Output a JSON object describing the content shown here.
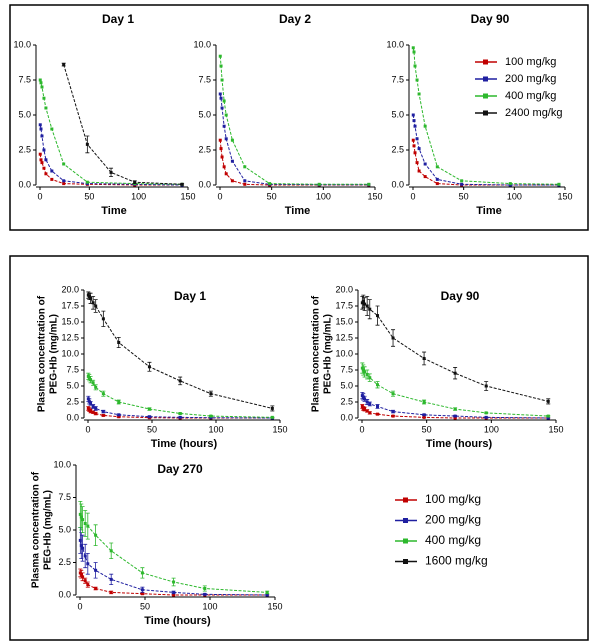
{
  "chart_data": [
    {
      "type": "line",
      "title": "Day 1",
      "xlabel": "Time",
      "xlim": [
        0,
        150
      ],
      "xticks": [
        0,
        50,
        100,
        150
      ],
      "ylim": [
        0,
        10
      ],
      "yticks": [
        {
          "value": 0,
          "label": "0.0"
        },
        2.5,
        {
          "value": 5,
          "label": "5.0"
        },
        7.5,
        {
          "value": 10,
          "label": "10.0"
        }
      ],
      "series": [
        {
          "color": "#c00000",
          "x": [
            0.25,
            1,
            2,
            4,
            6,
            12,
            24,
            48,
            96,
            144
          ],
          "values": [
            2.2,
            1.8,
            1.6,
            1.2,
            0.8,
            0.4,
            0.1,
            0.05,
            0,
            0
          ]
        },
        {
          "color": "#1f1fa0",
          "x": [
            0.25,
            1,
            2,
            4,
            6,
            12,
            24,
            48,
            96,
            144
          ],
          "values": [
            4.3,
            4.0,
            3.5,
            2.5,
            1.8,
            1.0,
            0.3,
            0.1,
            0.05,
            0
          ]
        },
        {
          "color": "#2db82d",
          "x": [
            0.25,
            1,
            2,
            4,
            6,
            12,
            24,
            48,
            96,
            144
          ],
          "values": [
            7.5,
            7.3,
            7.0,
            6.2,
            5.5,
            4.0,
            1.5,
            0.2,
            0.1,
            0.05
          ]
        },
        {
          "color": "#111111",
          "x": [
            24,
            48,
            72,
            96,
            144
          ],
          "values": [
            8.6,
            2.9,
            0.9,
            0.2,
            0.05
          ],
          "errors": [
            0.1,
            0.6,
            0.3,
            0.1,
            0.05
          ]
        }
      ]
    },
    {
      "type": "line",
      "title": "Day 2",
      "xlabel": "Time",
      "xlim": [
        0,
        150
      ],
      "xticks": [
        0,
        50,
        100,
        150
      ],
      "ylim": [
        0,
        10
      ],
      "yticks": [
        {
          "value": 0,
          "label": "0.0"
        },
        2.5,
        {
          "value": 5,
          "label": "5.0"
        },
        7.5,
        {
          "value": 10,
          "label": "10.0"
        }
      ],
      "series": [
        {
          "color": "#c00000",
          "x": [
            0.25,
            1,
            2,
            4,
            6,
            12,
            24,
            48,
            96,
            144
          ],
          "values": [
            3.2,
            2.6,
            2.0,
            1.3,
            0.8,
            0.3,
            0.05,
            0,
            0,
            0
          ]
        },
        {
          "color": "#1f1fa0",
          "x": [
            0.25,
            1,
            2,
            4,
            6,
            12,
            24,
            48,
            96,
            144
          ],
          "values": [
            6.5,
            6.2,
            5.5,
            4.2,
            3.3,
            1.7,
            0.3,
            0.05,
            0.02,
            0.02
          ]
        },
        {
          "color": "#2db82d",
          "x": [
            0.25,
            1,
            2,
            4,
            6,
            12,
            24,
            48,
            96,
            144
          ],
          "values": [
            9.2,
            8.5,
            7.5,
            6.0,
            5.0,
            3.2,
            1.3,
            0.1,
            0.05,
            0.05
          ]
        }
      ]
    },
    {
      "type": "line",
      "title": "Day 90",
      "xlabel": "Time",
      "xlim": [
        0,
        150
      ],
      "xticks": [
        0,
        50,
        100,
        150
      ],
      "ylim": [
        0,
        10
      ],
      "yticks": [
        {
          "value": 0,
          "label": "0.0"
        },
        2.5,
        {
          "value": 5,
          "label": "5.0"
        },
        7.5,
        {
          "value": 10,
          "label": "10.0"
        }
      ],
      "series": [
        {
          "color": "#c00000",
          "x": [
            0.25,
            1,
            2,
            4,
            6,
            12,
            24,
            48,
            96,
            144
          ],
          "values": [
            3.2,
            2.8,
            2.3,
            1.6,
            1.0,
            0.6,
            0.1,
            0,
            0,
            0
          ]
        },
        {
          "color": "#1f1fa0",
          "x": [
            0.25,
            1,
            2,
            4,
            6,
            12,
            24,
            48,
            96,
            144
          ],
          "values": [
            5.0,
            4.6,
            4.2,
            3.3,
            2.6,
            1.5,
            0.4,
            0.05,
            0,
            0
          ]
        },
        {
          "color": "#2db82d",
          "x": [
            0.25,
            1,
            2,
            4,
            6,
            12,
            24,
            48,
            96,
            144
          ],
          "values": [
            9.8,
            9.5,
            8.5,
            7.5,
            6.5,
            4.2,
            1.3,
            0.3,
            0.1,
            0.05
          ]
        }
      ]
    },
    {
      "type": "line",
      "title": "Day 1",
      "xlabel": "Time (hours)",
      "ylabel": [
        "Plasma concentration of",
        "PEG-Hb (mg/mL)"
      ],
      "xlim": [
        0,
        150
      ],
      "xticks": [
        0,
        50,
        100,
        150
      ],
      "ylim": [
        0,
        20
      ],
      "yticks": [
        {
          "value": 0,
          "label": "0.0"
        },
        2.5,
        {
          "value": 5,
          "label": "5.0"
        },
        7.5,
        {
          "value": 10,
          "label": "10.0"
        },
        12.5,
        {
          "value": 15,
          "label": "15.0"
        },
        17.5,
        {
          "value": 20,
          "label": "20.0"
        }
      ],
      "series": [
        {
          "color": "#c00000",
          "x": [
            0.25,
            1,
            2,
            4,
            6,
            12,
            24,
            48,
            72,
            96,
            144
          ],
          "values": [
            1.5,
            1.3,
            1.1,
            0.9,
            0.7,
            0.4,
            0.2,
            0.05,
            0,
            0,
            0
          ],
          "errors": [
            0.3,
            0.3,
            0.3,
            0.2,
            0.2,
            0.1,
            0.1,
            0.05,
            0,
            0,
            0
          ]
        },
        {
          "color": "#1f1fa0",
          "x": [
            0.25,
            1,
            2,
            4,
            6,
            12,
            24,
            48,
            72,
            96,
            144
          ],
          "values": [
            3.0,
            2.6,
            2.3,
            1.8,
            1.5,
            1.0,
            0.5,
            0.2,
            0.1,
            0.05,
            0
          ],
          "errors": [
            0.4,
            0.4,
            0.3,
            0.3,
            0.3,
            0.2,
            0.1,
            0.1,
            0.05,
            0,
            0
          ]
        },
        {
          "color": "#2db82d",
          "x": [
            0.25,
            1,
            2,
            4,
            6,
            12,
            24,
            48,
            72,
            96,
            144
          ],
          "values": [
            6.5,
            6.3,
            6.0,
            5.5,
            4.8,
            3.8,
            2.5,
            1.4,
            0.7,
            0.3,
            0.1
          ],
          "errors": [
            0.5,
            0.5,
            0.5,
            0.4,
            0.4,
            0.4,
            0.3,
            0.2,
            0.1,
            0.1,
            0.05
          ]
        },
        {
          "color": "#111111",
          "x": [
            0.25,
            1,
            2,
            4,
            6,
            12,
            24,
            48,
            72,
            96,
            144
          ],
          "values": [
            19.2,
            19.0,
            18.7,
            18.0,
            17.5,
            15.5,
            11.8,
            8.0,
            5.8,
            3.8,
            1.5
          ],
          "errors": [
            0.5,
            0.5,
            0.8,
            1.0,
            1.0,
            1.2,
            0.8,
            0.7,
            0.6,
            0.4,
            0.4
          ]
        }
      ]
    },
    {
      "type": "line",
      "title": "Day 90",
      "xlabel": "Time (hours)",
      "ylabel": [
        "Plasma concentration of",
        "PEG-Hb (mg/mL)"
      ],
      "xlim": [
        0,
        150
      ],
      "xticks": [
        0,
        50,
        100,
        150
      ],
      "ylim": [
        0,
        20
      ],
      "yticks": [
        {
          "value": 0,
          "label": "0.0"
        },
        2.5,
        {
          "value": 5,
          "label": "5.0"
        },
        7.5,
        {
          "value": 10,
          "label": "10.0"
        },
        12.5,
        {
          "value": 15,
          "label": "15.0"
        },
        17.5,
        {
          "value": 20,
          "label": "20.0"
        }
      ],
      "series": [
        {
          "color": "#c00000",
          "x": [
            0.25,
            1,
            2,
            4,
            6,
            12,
            24,
            48,
            72,
            96,
            144
          ],
          "values": [
            1.8,
            1.5,
            1.4,
            1.1,
            0.8,
            0.6,
            0.3,
            0.1,
            0,
            0,
            0
          ],
          "errors": [
            0.3,
            0.3,
            0.3,
            0.2,
            0.2,
            0.1,
            0.1,
            0.05,
            0,
            0,
            0
          ]
        },
        {
          "color": "#1f1fa0",
          "x": [
            0.25,
            1,
            2,
            4,
            6,
            12,
            24,
            48,
            72,
            96,
            144
          ],
          "values": [
            3.5,
            3.3,
            3.0,
            2.5,
            2.2,
            1.8,
            1.0,
            0.5,
            0.3,
            0.1,
            0
          ],
          "errors": [
            0.5,
            0.5,
            0.4,
            0.4,
            0.3,
            0.3,
            0.2,
            0.1,
            0.1,
            0.05,
            0
          ]
        },
        {
          "color": "#2db82d",
          "x": [
            0.25,
            1,
            2,
            4,
            6,
            12,
            24,
            48,
            72,
            96,
            144
          ],
          "values": [
            7.8,
            7.5,
            7.2,
            6.8,
            6.3,
            5.2,
            3.8,
            2.5,
            1.4,
            0.8,
            0.3
          ],
          "errors": [
            0.8,
            0.8,
            0.8,
            0.7,
            0.6,
            0.5,
            0.4,
            0.3,
            0.2,
            0.1,
            0.1
          ]
        },
        {
          "color": "#111111",
          "x": [
            0.25,
            1,
            2,
            4,
            6,
            12,
            24,
            48,
            72,
            96,
            144
          ],
          "values": [
            18.0,
            18.2,
            17.8,
            17.5,
            17.0,
            16.0,
            12.5,
            9.3,
            7.0,
            5.0,
            2.6
          ],
          "errors": [
            1,
            1,
            1,
            1.5,
            1.5,
            1.5,
            1.3,
            1,
            0.9,
            0.7,
            0.4
          ]
        }
      ]
    },
    {
      "type": "line",
      "title": "Day 270",
      "xlabel": "Time (hours)",
      "ylabel": [
        "Plasma concentration of",
        "PEG-Hb (mg/mL)"
      ],
      "xlim": [
        0,
        150
      ],
      "xticks": [
        0,
        50,
        100,
        150
      ],
      "ylim": [
        0,
        10
      ],
      "yticks": [
        {
          "value": 0,
          "label": "0.0"
        },
        2.5,
        {
          "value": 5,
          "label": "5.0"
        },
        7.5,
        {
          "value": 10,
          "label": "10.0"
        }
      ],
      "series": [
        {
          "color": "#c00000",
          "x": [
            0.25,
            1,
            2,
            4,
            6,
            12,
            24,
            48,
            72,
            96,
            144
          ],
          "values": [
            1.7,
            1.6,
            1.4,
            1.1,
            0.8,
            0.5,
            0.2,
            0.1,
            0,
            0,
            0
          ],
          "errors": [
            0.3,
            0.3,
            0.3,
            0.2,
            0.2,
            0.1,
            0.1,
            0.05,
            0,
            0,
            0
          ]
        },
        {
          "color": "#1f1fa0",
          "x": [
            0.25,
            1,
            2,
            4,
            6,
            12,
            24,
            48,
            72,
            96,
            144
          ],
          "values": [
            4.2,
            3.8,
            3.6,
            3.0,
            2.4,
            1.9,
            1.2,
            0.4,
            0.2,
            0.05,
            0
          ],
          "errors": [
            1,
            1,
            1,
            0.9,
            0.8,
            0.6,
            0.4,
            0.2,
            0.1,
            0.05,
            0
          ]
        },
        {
          "color": "#2db82d",
          "x": [
            0.25,
            1,
            2,
            4,
            6,
            12,
            24,
            48,
            72,
            96,
            144
          ],
          "values": [
            6.2,
            6.0,
            5.8,
            5.5,
            5.3,
            4.6,
            3.4,
            1.7,
            1.0,
            0.5,
            0.2
          ],
          "errors": [
            1,
            1,
            1,
            1,
            1,
            0.8,
            0.6,
            0.4,
            0.3,
            0.2,
            0.1
          ]
        }
      ]
    }
  ],
  "legends": [
    {
      "items": [
        {
          "name": "100 mg/kg",
          "color": "#c00000"
        },
        {
          "name": "200 mg/kg",
          "color": "#1f1fa0"
        },
        {
          "name": "400 mg/kg",
          "color": "#2db82d"
        },
        {
          "name": "2400 mg/kg",
          "color": "#111111"
        }
      ]
    },
    {
      "items": [
        {
          "name": "100 mg/kg",
          "color": "#c00000"
        },
        {
          "name": "200 mg/kg",
          "color": "#1f1fa0"
        },
        {
          "name": "400 mg/kg",
          "color": "#2db82d"
        },
        {
          "name": "1600 mg/kg",
          "color": "#111111"
        }
      ]
    }
  ]
}
